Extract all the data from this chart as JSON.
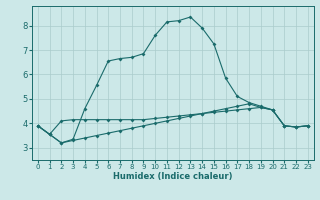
{
  "xlabel": "Humidex (Indice chaleur)",
  "background_color": "#cce8e8",
  "grid_color": "#aacccc",
  "line_color": "#1a6b6b",
  "xlim": [
    -0.5,
    23.5
  ],
  "ylim": [
    2.5,
    8.8
  ],
  "yticks": [
    3,
    4,
    5,
    6,
    7,
    8
  ],
  "xticks": [
    0,
    1,
    2,
    3,
    4,
    5,
    6,
    7,
    8,
    9,
    10,
    11,
    12,
    13,
    14,
    15,
    16,
    17,
    18,
    19,
    20,
    21,
    22,
    23
  ],
  "line1_x": [
    0,
    1,
    2,
    3,
    4,
    5,
    6,
    7,
    8,
    9,
    10,
    11,
    12,
    13,
    14,
    15,
    16,
    17,
    18,
    19,
    20,
    21,
    22,
    23
  ],
  "line1_y": [
    3.9,
    3.55,
    3.2,
    3.35,
    4.6,
    5.55,
    6.55,
    6.65,
    6.7,
    6.85,
    7.6,
    8.15,
    8.2,
    8.35,
    7.9,
    7.25,
    5.85,
    5.1,
    4.85,
    4.7,
    4.55,
    3.9,
    3.85,
    3.9
  ],
  "line2_x": [
    0,
    1,
    2,
    3,
    4,
    5,
    6,
    7,
    8,
    9,
    10,
    11,
    12,
    13,
    14,
    15,
    16,
    17,
    18,
    19,
    20,
    21,
    22,
    23
  ],
  "line2_y": [
    3.9,
    3.55,
    4.1,
    4.15,
    4.15,
    4.15,
    4.15,
    4.15,
    4.15,
    4.15,
    4.2,
    4.25,
    4.3,
    4.35,
    4.4,
    4.45,
    4.5,
    4.55,
    4.6,
    4.65,
    4.55,
    3.9,
    3.85,
    3.9
  ],
  "line3_x": [
    0,
    1,
    2,
    3,
    4,
    5,
    6,
    7,
    8,
    9,
    10,
    11,
    12,
    13,
    14,
    15,
    16,
    17,
    18,
    19,
    20,
    21,
    22,
    23
  ],
  "line3_y": [
    3.9,
    3.55,
    3.2,
    3.3,
    3.4,
    3.5,
    3.6,
    3.7,
    3.8,
    3.9,
    4.0,
    4.1,
    4.2,
    4.3,
    4.4,
    4.5,
    4.6,
    4.7,
    4.8,
    4.65,
    4.55,
    3.9,
    3.85,
    3.9
  ],
  "marker_size": 2.0,
  "line_width": 0.8,
  "xlabel_fontsize": 6.0,
  "tick_fontsize": 5.0,
  "ytick_fontsize": 6.0
}
